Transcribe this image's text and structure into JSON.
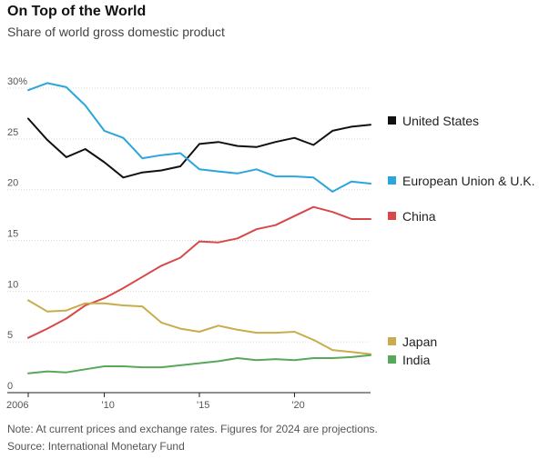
{
  "header": {
    "title": "On Top of the World",
    "subtitle": "Share of world gross domestic product"
  },
  "footer": {
    "note": "Note: At current prices and exchange rates. Figures for 2024 are projections.",
    "source": "Source: International Monetary Fund"
  },
  "chart_data": {
    "type": "line",
    "title": "On Top of the World",
    "subtitle": "Share of world gross domestic product",
    "xlabel": "",
    "ylabel": "",
    "x": [
      2006,
      2007,
      2008,
      2009,
      2010,
      2011,
      2012,
      2013,
      2014,
      2015,
      2016,
      2017,
      2018,
      2019,
      2020,
      2021,
      2022,
      2023,
      2024
    ],
    "xlim": [
      2006,
      2024
    ],
    "ylim": [
      0,
      30
    ],
    "x_ticks": [
      2006,
      2010,
      2015,
      2020
    ],
    "x_tick_labels": [
      "2006",
      "'10",
      "'15",
      "'20"
    ],
    "y_ticks": [
      0,
      5,
      10,
      15,
      20,
      25,
      30
    ],
    "y_tick_labels": [
      "0",
      "5",
      "10",
      "15",
      "20",
      "25",
      "30%"
    ],
    "grid": true,
    "legend_position": "right",
    "series": [
      {
        "name": "United States",
        "color": "#111111",
        "values": [
          27.0,
          24.9,
          23.2,
          24.0,
          22.7,
          21.2,
          21.7,
          21.9,
          22.3,
          24.5,
          24.7,
          24.3,
          24.2,
          24.7,
          25.1,
          24.4,
          25.8,
          26.2,
          26.4
        ]
      },
      {
        "name": "European Union & U.K.",
        "color": "#2aa6dd",
        "values": [
          29.8,
          30.5,
          30.1,
          28.3,
          25.8,
          25.1,
          23.1,
          23.4,
          23.6,
          22.0,
          21.8,
          21.6,
          22.0,
          21.3,
          21.3,
          21.2,
          19.8,
          20.8,
          20.6
        ]
      },
      {
        "name": "China",
        "color": "#d94848",
        "values": [
          5.4,
          6.3,
          7.3,
          8.6,
          9.3,
          10.3,
          11.4,
          12.5,
          13.3,
          14.9,
          14.8,
          15.2,
          16.1,
          16.5,
          17.4,
          18.3,
          17.8,
          17.1,
          17.1
        ]
      },
      {
        "name": "Japan",
        "color": "#c9ac4b",
        "values": [
          9.1,
          8.0,
          8.1,
          8.8,
          8.8,
          8.6,
          8.5,
          6.9,
          6.3,
          6.0,
          6.6,
          6.2,
          5.9,
          5.9,
          6.0,
          5.2,
          4.2,
          4.0,
          3.8
        ]
      },
      {
        "name": "India",
        "color": "#58a859",
        "values": [
          1.9,
          2.1,
          2.0,
          2.3,
          2.6,
          2.6,
          2.5,
          2.5,
          2.7,
          2.9,
          3.1,
          3.4,
          3.2,
          3.3,
          3.2,
          3.4,
          3.4,
          3.5,
          3.7
        ]
      }
    ]
  }
}
